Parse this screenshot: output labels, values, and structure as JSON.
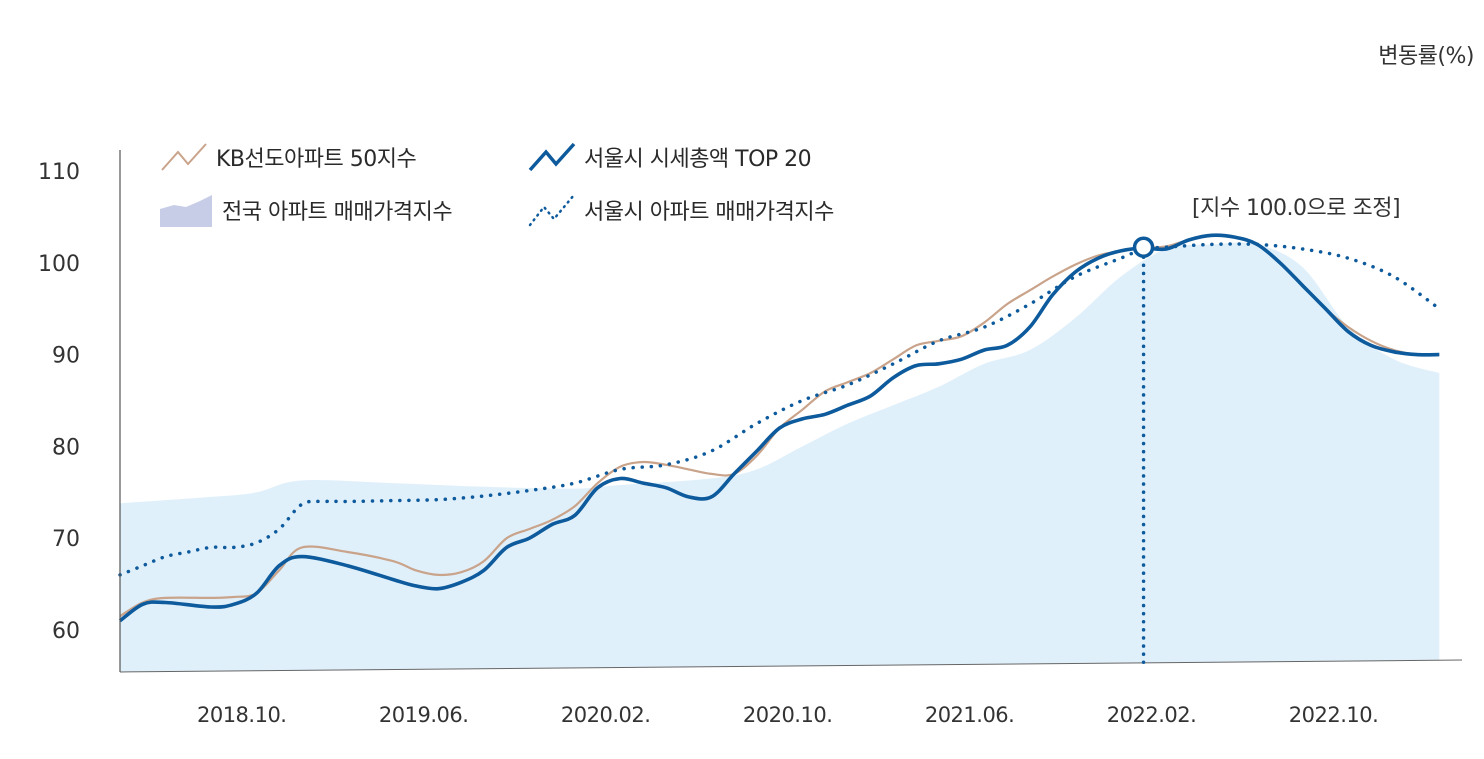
{
  "chart_data": {
    "type": "line",
    "unit_label": "변동률(%)",
    "ylim": [
      55,
      112
    ],
    "y_ticks": [
      60,
      70,
      80,
      90,
      100,
      110
    ],
    "x_ticks": [
      "2018.10.",
      "2019.06.",
      "2020.02.",
      "2020.10.",
      "2021.06.",
      "2022.02.",
      "2022.10."
    ],
    "x_tick_index": [
      5,
      13,
      21,
      29,
      37,
      45,
      53
    ],
    "x_range": [
      0,
      59
    ],
    "grid": false,
    "annotation": {
      "label": "[지수 100.0으로 조정]",
      "x": 45,
      "y": 101.7
    },
    "series": [
      {
        "name": "전국 아파트 매매가격지수",
        "style": "area",
        "color": "#e0f0fb",
        "legend_color": "#c7cde6",
        "x": [
          0,
          4,
          6,
          8,
          12,
          16,
          20,
          22,
          26,
          28,
          30,
          32,
          34,
          36,
          38,
          40,
          42,
          44,
          46,
          48,
          50,
          52,
          54,
          56,
          58
        ],
        "values": [
          73.8,
          74.5,
          75,
          76.3,
          76,
          75.6,
          75.4,
          75.8,
          76.5,
          77.5,
          80,
          82.5,
          84.5,
          86.5,
          89,
          90.5,
          94,
          98.5,
          101.5,
          102,
          102,
          99.5,
          93,
          89.5,
          88
        ]
      },
      {
        "name": "KB선도아파트 50지수",
        "style": "line",
        "color": "#c9a38a",
        "x": [
          0,
          1,
          2,
          4,
          5,
          6,
          7,
          8,
          10,
          12,
          13,
          14,
          15,
          16,
          17,
          18,
          19,
          20,
          21,
          22,
          23,
          24,
          25,
          26,
          27,
          28,
          29,
          30,
          31,
          32,
          33,
          34,
          35,
          36,
          37,
          38,
          39,
          40,
          41,
          42,
          43,
          44,
          45,
          46,
          47,
          48,
          49,
          50,
          51,
          52,
          53,
          54,
          55,
          56,
          57,
          58
        ],
        "values": [
          61.5,
          63,
          63.5,
          63.5,
          63.6,
          64,
          66.5,
          69,
          68.5,
          67.5,
          66.5,
          66,
          66.3,
          67.5,
          70,
          71,
          72,
          73.5,
          76,
          77.8,
          78.3,
          78,
          77.5,
          77,
          77,
          79,
          82,
          84,
          86,
          87,
          88,
          89.5,
          91,
          91.5,
          92,
          93.5,
          95.5,
          97,
          98.5,
          99.8,
          100.8,
          101.3,
          101.6,
          101.8,
          102.5,
          103,
          102.8,
          102,
          100,
          97.5,
          95,
          93,
          91.5,
          90.5,
          90,
          90
        ]
      },
      {
        "name": "서울시 시세총액 TOP 20",
        "style": "line",
        "color": "#0d5a9c",
        "x": [
          0,
          1,
          2,
          4,
          5,
          6,
          7,
          8,
          10,
          12,
          13,
          14,
          15,
          16,
          17,
          18,
          19,
          20,
          21,
          22,
          23,
          24,
          25,
          26,
          27,
          28,
          29,
          30,
          31,
          32,
          33,
          34,
          35,
          36,
          37,
          38,
          39,
          40,
          41,
          42,
          43,
          44,
          45,
          46,
          47,
          48,
          49,
          50,
          51,
          52,
          53,
          54,
          55,
          56,
          57,
          58
        ],
        "values": [
          61,
          62.8,
          63,
          62.5,
          62.8,
          64,
          67,
          68,
          67,
          65.5,
          64.8,
          64.5,
          65.2,
          66.5,
          69,
          70,
          71.5,
          72.5,
          75.5,
          76.5,
          76,
          75.5,
          74.5,
          74.5,
          77,
          79.5,
          82,
          83,
          83.5,
          84.5,
          85.5,
          87.5,
          88.8,
          89,
          89.5,
          90.5,
          91,
          93,
          96.5,
          99,
          100.5,
          101.3,
          101.6,
          101.5,
          102.5,
          103,
          102.8,
          102,
          100,
          97.5,
          95,
          92.5,
          91,
          90.3,
          90,
          90
        ]
      },
      {
        "name": "서울시 아파트 매매가격지수",
        "style": "dotted",
        "color": "#0d5a9c",
        "x": [
          0,
          1,
          2,
          3,
          4,
          5,
          6,
          7,
          8,
          9,
          10,
          12,
          14,
          16,
          18,
          20,
          22,
          24,
          26,
          28,
          30,
          32,
          34,
          36,
          38,
          40,
          42,
          44,
          45,
          46,
          48,
          50,
          52,
          54,
          56,
          58
        ],
        "values": [
          66,
          67,
          68,
          68.5,
          69,
          69,
          69.5,
          71,
          73.7,
          74,
          74,
          74.1,
          74.2,
          74.6,
          75.2,
          76,
          77.5,
          78,
          79.5,
          82.5,
          85,
          86.7,
          89,
          91.5,
          93,
          95.5,
          98.5,
          100.5,
          101.5,
          101.7,
          102,
          102,
          101.5,
          100.5,
          98.5,
          95
        ]
      }
    ]
  }
}
